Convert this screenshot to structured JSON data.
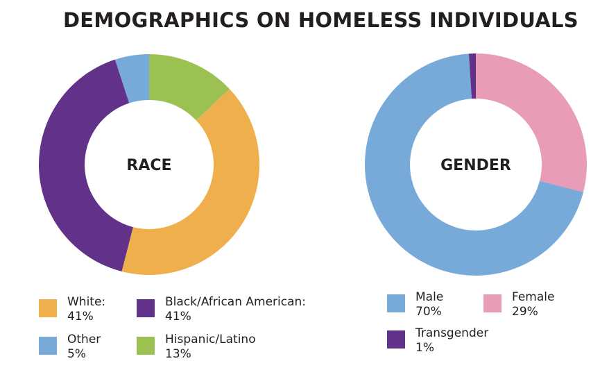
{
  "title": "DEMOGRAPHICS ON HOMELESS INDIVIDUALS",
  "chart_data": [
    {
      "type": "pie",
      "donut": true,
      "center_label": "RACE",
      "start": "top",
      "direction": "clockwise",
      "slices": [
        {
          "label": "Hispanic/Latino",
          "value": 13,
          "value_label": "13%",
          "color": "#9bc153"
        },
        {
          "label": "White:",
          "value": 41,
          "value_label": "41%",
          "color": "#efaf4c"
        },
        {
          "label": "Black/African American:",
          "value": 41,
          "value_label": "41%",
          "color": "#62318a"
        },
        {
          "label": "Other",
          "value": 5,
          "value_label": "5%",
          "color": "#77a9d9"
        }
      ],
      "legend_order": [
        1,
        2,
        3,
        0
      ]
    },
    {
      "type": "pie",
      "donut": true,
      "center_label": "GENDER",
      "start": "top",
      "direction": "clockwise",
      "slices": [
        {
          "label": "Female",
          "value": 29,
          "value_label": "29%",
          "color": "#e89cb8"
        },
        {
          "label": "Male",
          "value": 70,
          "value_label": "70%",
          "color": "#77a9d9"
        },
        {
          "label": "Transgender",
          "value": 1,
          "value_label": "1%",
          "color": "#62318a"
        }
      ],
      "legend_order": [
        1,
        0,
        2
      ]
    }
  ]
}
